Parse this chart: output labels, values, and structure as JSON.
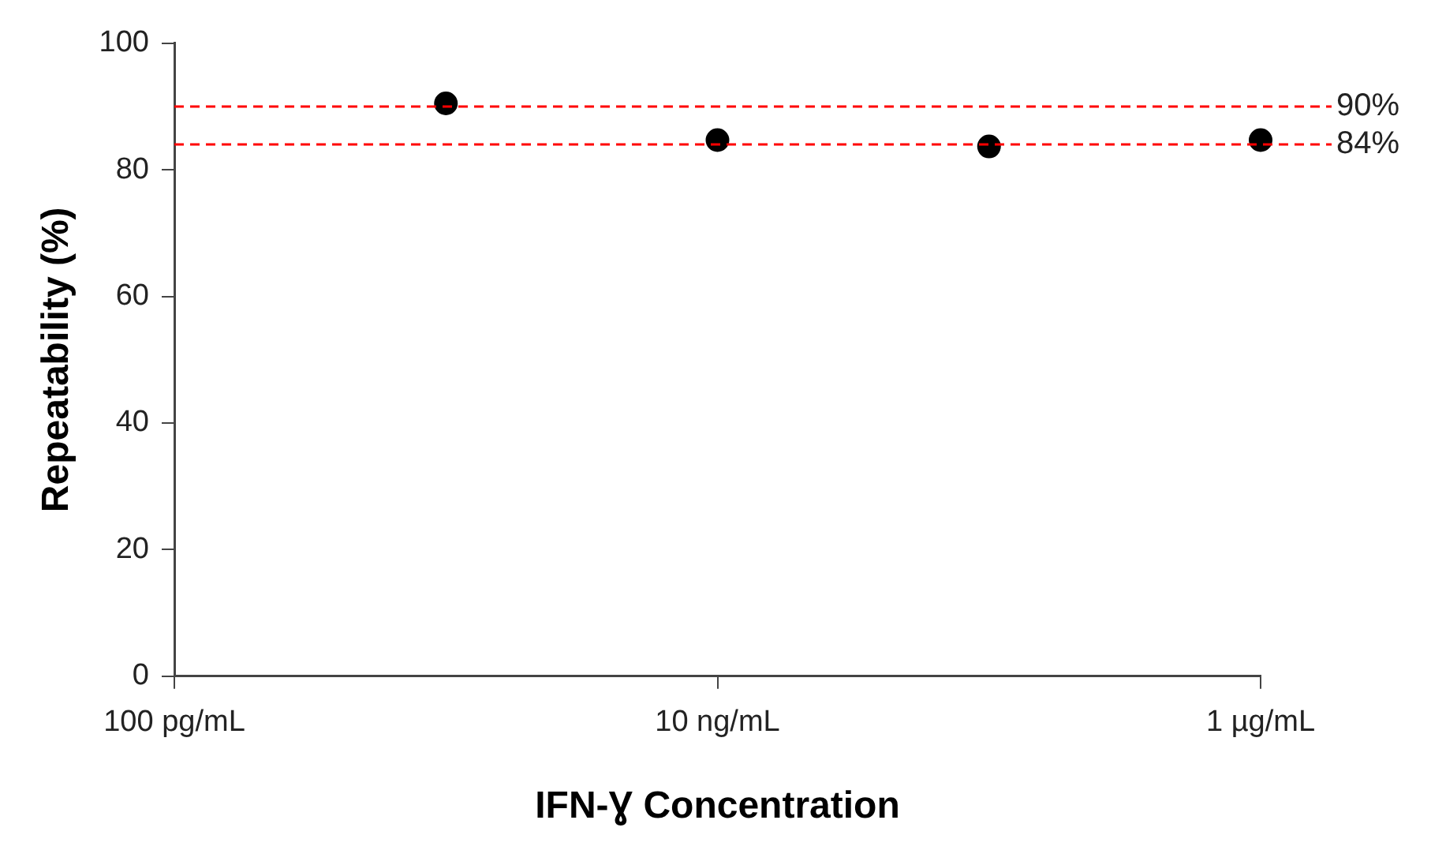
{
  "chart_data": {
    "type": "scatter",
    "xlabel": "IFN-Ɣ Concentration",
    "ylabel": "Repeatability (%)",
    "categories": [
      "100 pg/mL",
      null,
      "10 ng/mL",
      null,
      "1 µg/mL"
    ],
    "series": [
      {
        "color": "#000000",
        "values": [
          null,
          90.5,
          84.7,
          83.7,
          84.7
        ]
      }
    ],
    "ylim": [
      0,
      100
    ],
    "yticks": [
      0,
      20,
      40,
      60,
      80,
      100
    ],
    "grid": false,
    "legend": false,
    "marker": "circle",
    "ref_lines": [
      {
        "axis": "y",
        "value": 90,
        "label": "90%",
        "color": "#ff0000",
        "line_style": "dashed"
      },
      {
        "axis": "y",
        "value": 84,
        "label": "84%",
        "color": "#ff0000",
        "line_style": "dashed"
      }
    ]
  }
}
